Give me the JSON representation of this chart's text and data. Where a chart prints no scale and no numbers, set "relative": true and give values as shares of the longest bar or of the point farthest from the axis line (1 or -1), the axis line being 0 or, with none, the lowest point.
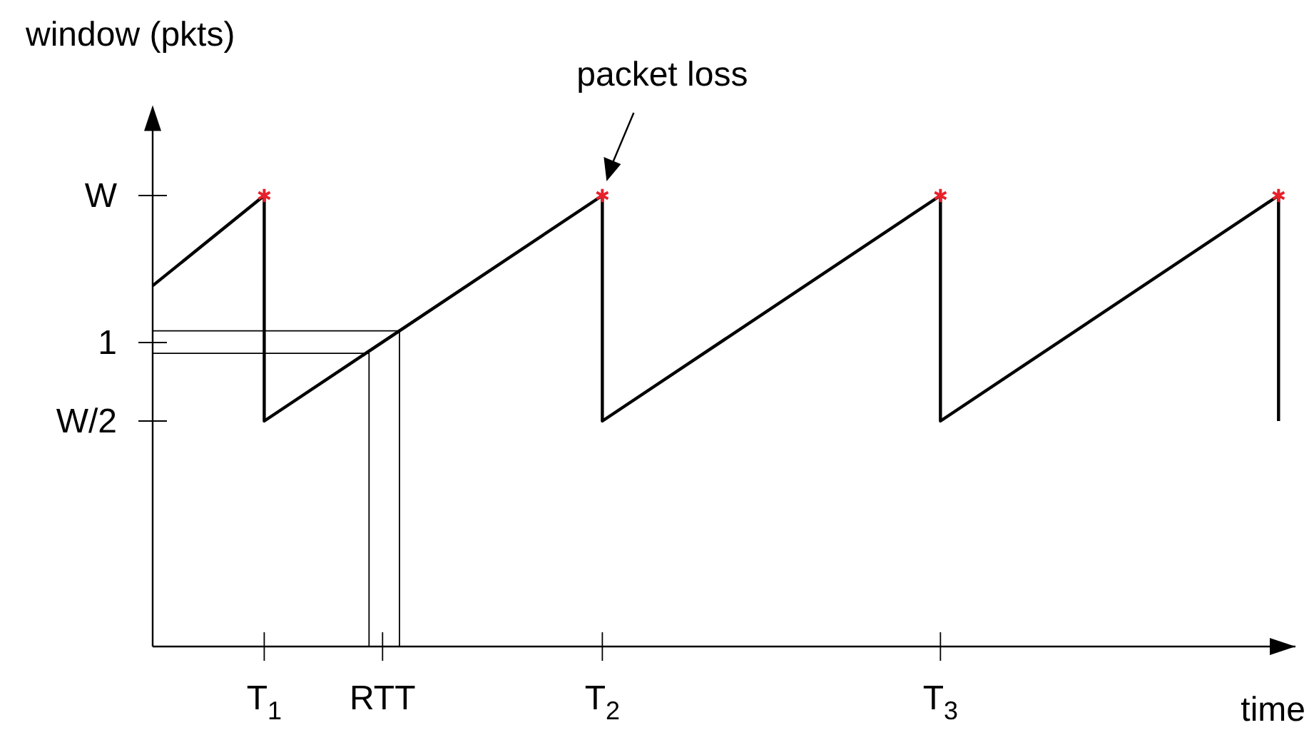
{
  "chart_data": {
    "type": "line",
    "relative": true,
    "xlabel": "time",
    "ylabel": "window (pkts)",
    "xlim": [
      0.67,
      4.05
    ],
    "xticks": [
      {
        "value": 1,
        "label": "T$_{1}$"
      },
      {
        "value": 1.35,
        "label": "RTT"
      },
      {
        "value": 2,
        "label": "T$_{2}$"
      },
      {
        "value": 3,
        "label": "T$_{3}$"
      }
    ],
    "series": [
      {
        "color": "#000000",
        "marker": "none",
        "line_style": "solid",
        "x": [
          0.67,
          1,
          1,
          2,
          2,
          3,
          3,
          4,
          4
        ],
        "values": [
          0.8,
          1,
          0.5,
          1,
          0.5,
          1,
          0.5,
          1,
          0.5
        ]
      },
      {
        "color": "#000000",
        "marker": "none",
        "line_style": "solid",
        "x": [
          0.67,
          1.4,
          1.4
        ],
        "values": [
          0.7,
          0.7,
          0
        ]
      },
      {
        "color": "#000000",
        "marker": "none",
        "line_style": "solid",
        "x": [
          0.67,
          1.31,
          1.31
        ],
        "values": [
          0.65,
          0.65,
          0
        ]
      },
      {
        "type": "scatter",
        "color": "#e8202a",
        "marker": "cross",
        "x": [
          1,
          2,
          3,
          4
        ],
        "values": [
          1,
          1,
          1,
          1
        ]
      }
    ],
    "annotations": [
      {
        "text": "packet loss",
        "x": 2,
        "y": 1
      },
      "W",
      "1",
      "W/2"
    ]
  }
}
